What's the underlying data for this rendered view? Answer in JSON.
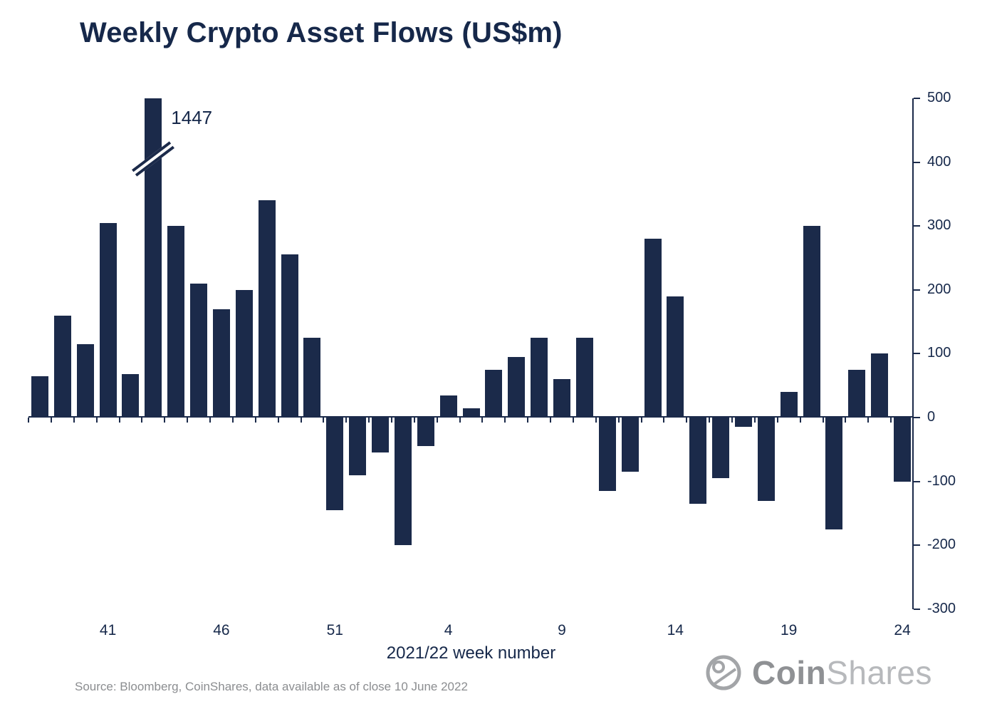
{
  "title": "Weekly Crypto Asset Flows (US$m)",
  "xlabel": "2021/22 week number",
  "source": "Source: Bloomberg, CoinShares, data available as of close 10 June 2022",
  "logo": {
    "coin": "Coin",
    "shares": "Shares"
  },
  "colors": {
    "bar": "#1b2a4a",
    "axis": "#1b2a4a",
    "title_text": "#16284a",
    "muted_text": "#8b8d90",
    "logo_gray": "#8f9194",
    "logo_light_gray": "#b7b9bc",
    "background": "#ffffff"
  },
  "chart_data": {
    "type": "bar",
    "title": "Weekly Crypto Asset Flows (US$m)",
    "xlabel": "2021/22 week number",
    "ylabel": "",
    "ylim": [
      -300,
      500
    ],
    "y_ticks": [
      500,
      400,
      300,
      200,
      100,
      0,
      -100,
      -200,
      -300
    ],
    "grid": false,
    "y_axis_position": "right",
    "x": [
      "38",
      "39",
      "40",
      "41",
      "42",
      "43",
      "44",
      "45",
      "46",
      "47",
      "48",
      "49",
      "50",
      "51",
      "52",
      "1",
      "2",
      "3",
      "4",
      "5",
      "6",
      "7",
      "8",
      "9",
      "10",
      "11",
      "12",
      "13",
      "14",
      "15",
      "16",
      "17",
      "18",
      "19",
      "20",
      "21",
      "22",
      "23",
      "24"
    ],
    "values": [
      65,
      160,
      115,
      305,
      68,
      1447,
      300,
      210,
      170,
      200,
      340,
      255,
      125,
      -145,
      -90,
      -55,
      -200,
      -45,
      35,
      15,
      75,
      95,
      125,
      60,
      125,
      -115,
      -85,
      280,
      190,
      -135,
      -95,
      -15,
      -130,
      40,
      300,
      -175,
      75,
      100,
      -100
    ],
    "x_tick_labels": [
      "41",
      "46",
      "51",
      "4",
      "9",
      "14",
      "19",
      "24"
    ],
    "x_tick_indices": [
      3,
      8,
      13,
      18,
      23,
      28,
      33,
      38
    ],
    "clipped_bar": {
      "index": 5,
      "week": "43",
      "value": 1447,
      "label": "1447",
      "drawn_at": 500
    }
  }
}
